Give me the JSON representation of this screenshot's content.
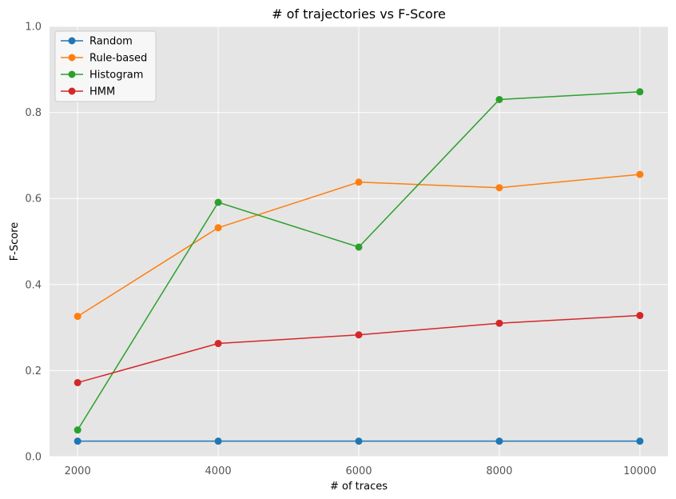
{
  "chart_data": {
    "type": "line",
    "title": "# of trajectories vs F-Score",
    "xlabel": "# of traces",
    "ylabel": "F-Score",
    "x": [
      2000,
      4000,
      6000,
      8000,
      10000
    ],
    "xlim": [
      1600,
      10400
    ],
    "ylim": [
      0,
      1.0
    ],
    "x_ticks": [
      "2000",
      "4000",
      "6000",
      "8000",
      "10000"
    ],
    "y_ticks": [
      "0.0",
      "0.2",
      "0.4",
      "0.6",
      "0.8",
      "1.0"
    ],
    "grid": true,
    "legend_position": "top-left",
    "series": [
      {
        "name": "Random",
        "color": "#1f77b4",
        "values": [
          0.036,
          0.036,
          0.036,
          0.036,
          0.036
        ]
      },
      {
        "name": "Rule-based",
        "color": "#ff7f0e",
        "values": [
          0.326,
          0.532,
          0.638,
          0.625,
          0.656
        ]
      },
      {
        "name": "Histogram",
        "color": "#2ca02c",
        "values": [
          0.062,
          0.591,
          0.487,
          0.83,
          0.848
        ]
      },
      {
        "name": "HMM",
        "color": "#d62728",
        "values": [
          0.172,
          0.263,
          0.283,
          0.31,
          0.328
        ]
      }
    ]
  }
}
